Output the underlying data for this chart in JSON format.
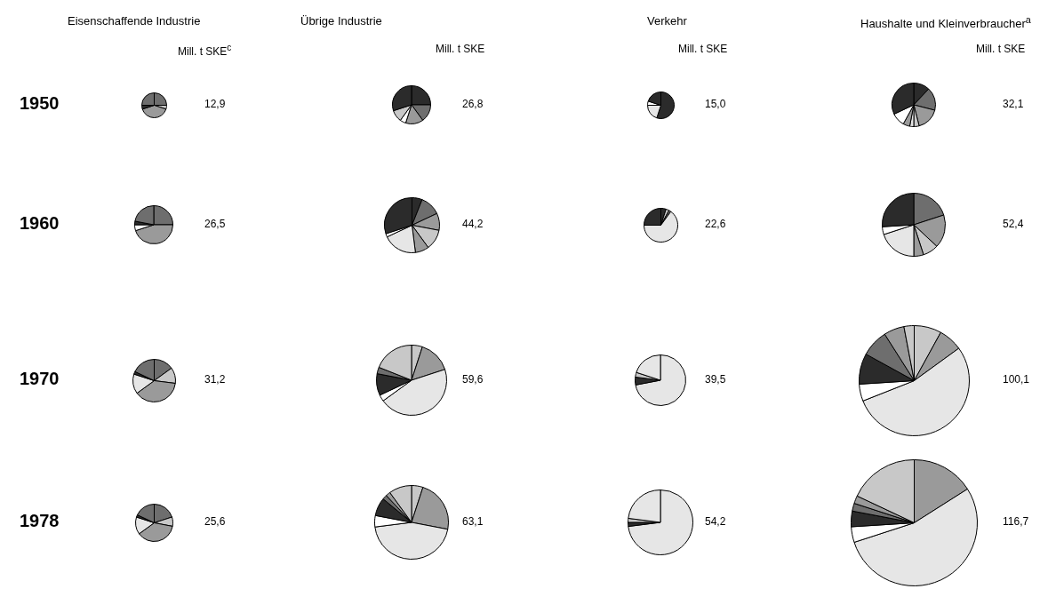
{
  "chart_data": [
    {
      "type": "pie",
      "title": "Eisenschaffende Industrie",
      "ylabel": "1950",
      "annotations": [
        "Mill. t SKE$^{c}$",
        "12,9"
      ],
      "categories": [
        null,
        null,
        null,
        null,
        null
      ],
      "values": [
        25,
        5,
        40,
        5,
        25
      ],
      "colors": [
        "#6e6e6e",
        "#c8c8c8",
        "#9a9a9a",
        "#2b2b2b",
        "#6e6e6e"
      ]
    },
    {
      "type": "pie",
      "title": "Übrige Industrie",
      "annotations": [
        "Mill. t SKE",
        "26,8"
      ],
      "categories": [
        null,
        null,
        null,
        null,
        null,
        null
      ],
      "values": [
        25,
        15,
        15,
        5,
        10,
        30
      ],
      "colors": [
        "#2b2b2b",
        "#6e6e6e",
        "#9a9a9a",
        "#ffffff",
        "#c8c8c8",
        "#2b2b2b"
      ]
    },
    {
      "type": "pie",
      "title": "Verkehr",
      "annotations": [
        "Mill. t SKE",
        "15,0"
      ],
      "categories": [
        null,
        null,
        null,
        null
      ],
      "values": [
        55,
        20,
        5,
        20
      ],
      "colors": [
        "#2b2b2b",
        "#e6e6e6",
        "#ffffff",
        "#2b2b2b"
      ]
    },
    {
      "type": "pie",
      "title": "Haushalte und Kleinverbraucher$^{a}$",
      "annotations": [
        "Mill. t SKE",
        "32,1"
      ],
      "categories": [
        null,
        null,
        null,
        null,
        null,
        null,
        null,
        null
      ],
      "values": [
        12,
        17,
        17,
        4,
        3,
        5,
        10,
        32
      ],
      "colors": [
        "#2b2b2b",
        "#6e6e6e",
        "#9a9a9a",
        "#c8c8c8",
        "#e6e6e6",
        "#9a9a9a",
        "#ffffff",
        "#2b2b2b"
      ]
    },
    {
      "type": "pie",
      "ylabel": "1960",
      "annotations": [
        "26,5"
      ],
      "categories": [
        null,
        null,
        null,
        null,
        null
      ],
      "values": [
        25,
        45,
        5,
        3,
        22
      ],
      "colors": [
        "#6e6e6e",
        "#9a9a9a",
        "#ffffff",
        "#2b2b2b",
        "#6e6e6e"
      ]
    },
    {
      "type": "pie",
      "annotations": [
        "44,2"
      ],
      "categories": [
        null,
        null,
        null,
        null,
        null,
        null,
        null,
        null
      ],
      "values": [
        6,
        12,
        10,
        12,
        8,
        20,
        2,
        30
      ],
      "colors": [
        "#2b2b2b",
        "#6e6e6e",
        "#9a9a9a",
        "#c8c8c8",
        "#9a9a9a",
        "#e6e6e6",
        "#ffffff",
        "#2b2b2b"
      ]
    },
    {
      "type": "pie",
      "annotations": [
        "22,6"
      ],
      "categories": [
        null,
        null,
        null,
        null,
        null
      ],
      "values": [
        5,
        3,
        2,
        65,
        25
      ],
      "colors": [
        "#2b2b2b",
        "#c8c8c8",
        "#6e6e6e",
        "#e6e6e6",
        "#2b2b2b"
      ]
    },
    {
      "type": "pie",
      "annotations": [
        "52,4"
      ],
      "categories": [
        null,
        null,
        null,
        null,
        null,
        null,
        null
      ],
      "values": [
        20,
        17,
        8,
        5,
        20,
        4,
        26
      ],
      "colors": [
        "#6e6e6e",
        "#9a9a9a",
        "#c8c8c8",
        "#9a9a9a",
        "#e6e6e6",
        "#ffffff",
        "#2b2b2b"
      ]
    },
    {
      "type": "pie",
      "ylabel": "1970",
      "annotations": [
        "31,2"
      ],
      "categories": [
        null,
        null,
        null,
        null,
        null,
        null
      ],
      "values": [
        15,
        12,
        38,
        15,
        2,
        18
      ],
      "colors": [
        "#6e6e6e",
        "#c8c8c8",
        "#9a9a9a",
        "#e6e6e6",
        "#2b2b2b",
        "#6e6e6e"
      ]
    },
    {
      "type": "pie",
      "annotations": [
        "59,6"
      ],
      "categories": [
        null,
        null,
        null,
        null,
        null,
        null,
        null
      ],
      "values": [
        5,
        15,
        45,
        3,
        10,
        3,
        19
      ],
      "colors": [
        "#c8c8c8",
        "#9a9a9a",
        "#e6e6e6",
        "#ffffff",
        "#2b2b2b",
        "#6e6e6e",
        "#c8c8c8"
      ]
    },
    {
      "type": "pie",
      "annotations": [
        "39,5"
      ],
      "categories": [
        null,
        null,
        null,
        null
      ],
      "values": [
        72,
        5,
        3,
        20
      ],
      "colors": [
        "#e6e6e6",
        "#2b2b2b",
        "#c8c8c8",
        "#e6e6e6"
      ]
    },
    {
      "type": "pie",
      "annotations": [
        "100,1"
      ],
      "categories": [
        null,
        null,
        null,
        null,
        null,
        null,
        null,
        null
      ],
      "values": [
        8,
        7,
        54,
        5,
        9,
        8,
        6,
        3
      ],
      "colors": [
        "#c8c8c8",
        "#9a9a9a",
        "#e6e6e6",
        "#ffffff",
        "#2b2b2b",
        "#6e6e6e",
        "#9a9a9a",
        "#c8c8c8"
      ]
    },
    {
      "type": "pie",
      "ylabel": "1978",
      "annotations": [
        "25,6"
      ],
      "categories": [
        null,
        null,
        null,
        null,
        null,
        null
      ],
      "values": [
        20,
        8,
        37,
        15,
        2,
        18
      ],
      "colors": [
        "#6e6e6e",
        "#c8c8c8",
        "#9a9a9a",
        "#e6e6e6",
        "#2b2b2b",
        "#6e6e6e"
      ]
    },
    {
      "type": "pie",
      "annotations": [
        "63,1"
      ],
      "categories": [
        null,
        null,
        null,
        null,
        null,
        null,
        null,
        null
      ],
      "values": [
        5,
        23,
        45,
        5,
        8,
        2,
        2,
        10
      ],
      "colors": [
        "#c8c8c8",
        "#9a9a9a",
        "#e6e6e6",
        "#ffffff",
        "#2b2b2b",
        "#6e6e6e",
        "#9a9a9a",
        "#c8c8c8"
      ]
    },
    {
      "type": "pie",
      "annotations": [
        "54,2"
      ],
      "categories": [
        null,
        null,
        null,
        null
      ],
      "values": [
        73,
        2,
        2,
        23
      ],
      "colors": [
        "#e6e6e6",
        "#2b2b2b",
        "#c8c8c8",
        "#e6e6e6"
      ]
    },
    {
      "type": "pie",
      "annotations": [
        "116,7"
      ],
      "categories": [
        null,
        null,
        null,
        null,
        null,
        null,
        null
      ],
      "values": [
        16,
        54,
        4,
        4,
        2,
        2,
        18
      ],
      "colors": [
        "#9a9a9a",
        "#e6e6e6",
        "#ffffff",
        "#2b2b2b",
        "#6e6e6e",
        "#9a9a9a",
        "#c8c8c8"
      ]
    }
  ]
}
